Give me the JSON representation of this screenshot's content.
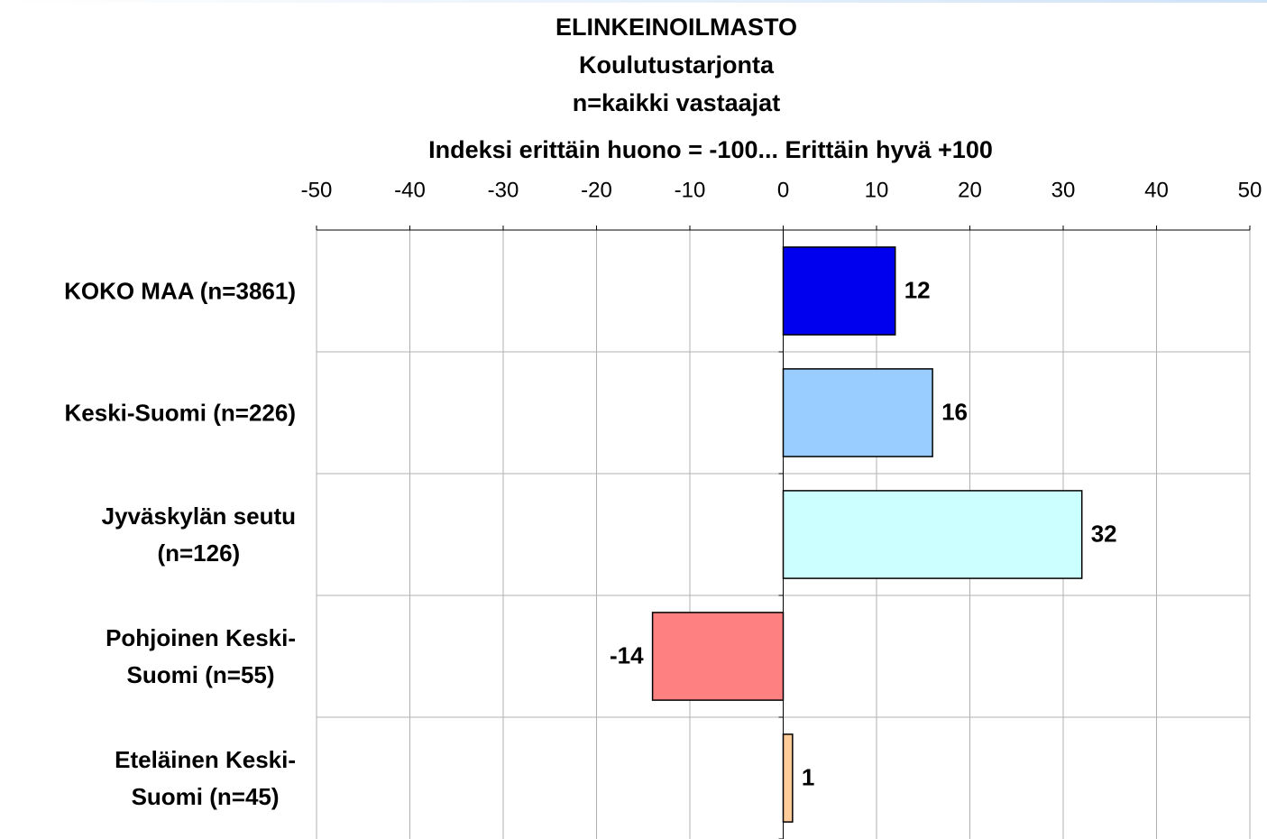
{
  "chart_data": {
    "type": "barh",
    "title": "ELINKEINOILMASTO",
    "subtitle": "Koulutustarjonta",
    "note": "n=kaikki vastaajat",
    "xlabel": "Indeksi erittäin huono = -100... Erittäin hyvä +100",
    "categories": [
      "KOKO MAA (n=3861)",
      "Keski-Suomi (n=226)",
      "Jyväskylän seutu\n(n=126)",
      "Pohjoinen Keski-\nSuomi (n=55)",
      "Eteläinen Keski-\nSuomi (n=45)"
    ],
    "values": [
      12,
      16,
      32,
      -14,
      1
    ],
    "colors": [
      "#0000ee",
      "#99ccff",
      "#ccffff",
      "#ff8080",
      "#ffcc99"
    ],
    "xlim": [
      -50,
      50
    ],
    "xticks": [
      -50,
      -40,
      -30,
      -20,
      -10,
      0,
      10,
      20,
      30,
      40,
      50
    ],
    "grid": true
  }
}
